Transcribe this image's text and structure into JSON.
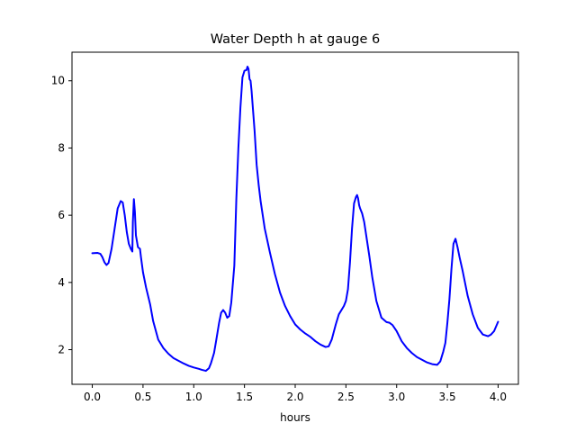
{
  "chart_data": {
    "type": "line",
    "title": "Water Depth h at gauge 6",
    "xlabel": "hours",
    "ylabel": "",
    "xlim": [
      -0.2,
      4.2
    ],
    "ylim": [
      0.97,
      10.85
    ],
    "xticks": [
      0.0,
      0.5,
      1.0,
      1.5,
      2.0,
      2.5,
      3.0,
      3.5,
      4.0
    ],
    "xtick_labels": [
      "0.0",
      "0.5",
      "1.0",
      "1.5",
      "2.0",
      "2.5",
      "3.0",
      "3.5",
      "4.0"
    ],
    "yticks": [
      2,
      4,
      6,
      8,
      10
    ],
    "ytick_labels": [
      "2",
      "4",
      "6",
      "8",
      "10"
    ],
    "grid": false,
    "series": [
      {
        "color": "#0000ff",
        "x": [
          0.0,
          0.05,
          0.08,
          0.1,
          0.12,
          0.14,
          0.16,
          0.19,
          0.22,
          0.25,
          0.28,
          0.3,
          0.32,
          0.34,
          0.36,
          0.38,
          0.395,
          0.4,
          0.41,
          0.42,
          0.43,
          0.45,
          0.47,
          0.48,
          0.5,
          0.53,
          0.57,
          0.6,
          0.65,
          0.7,
          0.75,
          0.8,
          0.85,
          0.9,
          0.95,
          1.0,
          1.05,
          1.08,
          1.12,
          1.15,
          1.17,
          1.2,
          1.22,
          1.25,
          1.27,
          1.29,
          1.31,
          1.33,
          1.35,
          1.37,
          1.4,
          1.42,
          1.44,
          1.46,
          1.48,
          1.5,
          1.52,
          1.53,
          1.54,
          1.55,
          1.56,
          1.57,
          1.58,
          1.6,
          1.62,
          1.64,
          1.66,
          1.7,
          1.75,
          1.8,
          1.85,
          1.9,
          1.95,
          2.0,
          2.05,
          2.1,
          2.15,
          2.2,
          2.25,
          2.3,
          2.33,
          2.36,
          2.4,
          2.43,
          2.46,
          2.48,
          2.5,
          2.52,
          2.54,
          2.56,
          2.58,
          2.6,
          2.61,
          2.62,
          2.63,
          2.64,
          2.66,
          2.68,
          2.7,
          2.73,
          2.76,
          2.8,
          2.85,
          2.9,
          2.93,
          2.96,
          3.0,
          3.05,
          3.1,
          3.15,
          3.2,
          3.25,
          3.3,
          3.35,
          3.4,
          3.43,
          3.46,
          3.48,
          3.5,
          3.52,
          3.54,
          3.56,
          3.58,
          3.6,
          3.62,
          3.65,
          3.7,
          3.75,
          3.8,
          3.85,
          3.9,
          3.93,
          3.96,
          4.0
        ],
        "y": [
          4.87,
          4.88,
          4.85,
          4.75,
          4.6,
          4.52,
          4.58,
          5.0,
          5.6,
          6.2,
          6.42,
          6.38,
          6.0,
          5.5,
          5.15,
          5.0,
          4.92,
          5.8,
          6.48,
          6.1,
          5.4,
          5.05,
          5.0,
          4.75,
          4.3,
          3.85,
          3.35,
          2.85,
          2.3,
          2.05,
          1.88,
          1.75,
          1.67,
          1.59,
          1.52,
          1.47,
          1.43,
          1.4,
          1.37,
          1.45,
          1.6,
          1.9,
          2.25,
          2.8,
          3.1,
          3.18,
          3.1,
          2.95,
          3.0,
          3.4,
          4.5,
          6.5,
          8.0,
          9.2,
          10.1,
          10.3,
          10.32,
          10.42,
          10.35,
          10.05,
          10.0,
          9.7,
          9.3,
          8.5,
          7.5,
          6.9,
          6.4,
          5.6,
          4.9,
          4.25,
          3.7,
          3.3,
          3.0,
          2.75,
          2.6,
          2.48,
          2.38,
          2.25,
          2.15,
          2.08,
          2.1,
          2.3,
          2.75,
          3.05,
          3.2,
          3.3,
          3.45,
          3.8,
          4.6,
          5.6,
          6.35,
          6.55,
          6.6,
          6.5,
          6.3,
          6.2,
          6.05,
          5.8,
          5.4,
          4.8,
          4.15,
          3.45,
          2.95,
          2.82,
          2.8,
          2.73,
          2.55,
          2.25,
          2.05,
          1.9,
          1.78,
          1.7,
          1.62,
          1.57,
          1.55,
          1.65,
          1.95,
          2.2,
          2.8,
          3.5,
          4.4,
          5.15,
          5.3,
          5.05,
          4.75,
          4.35,
          3.6,
          3.05,
          2.65,
          2.45,
          2.4,
          2.45,
          2.55,
          2.83
        ]
      }
    ]
  }
}
